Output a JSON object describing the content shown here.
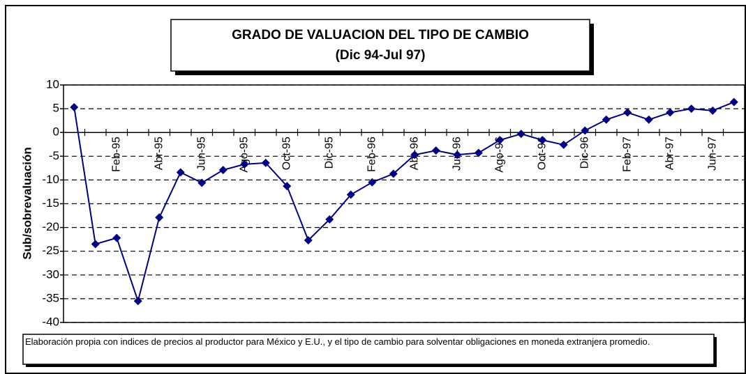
{
  "chart_data": {
    "type": "line",
    "title": "GRADO DE VALUACION DEL TIPO DE CAMBIO",
    "subtitle": "(Dic 94-Jul 97)",
    "y_label": "Sub/sobrevaluación",
    "note": "Elaboración propia con indices de precios al productor para México y E.U., y el tipo de cambio para solventar obligaciones en moneda extranjera promedio.",
    "categories": [
      null,
      null,
      "Feb-95",
      null,
      "Abr-95",
      null,
      "Jun-95",
      null,
      "Ago-95",
      null,
      "Oct-95",
      null,
      "Dic-95",
      null,
      "Feb-96",
      null,
      "Abr-96",
      null,
      "Jun-96",
      null,
      "Ago-96",
      null,
      "Oct-96",
      null,
      "Dic-96",
      null,
      "Feb-97",
      null,
      "Abr-97",
      null,
      "Jun-97",
      null
    ],
    "series": [
      {
        "name": "Sub/sobrevaluación",
        "color": "#000080",
        "values": [
          5.3,
          -23.5,
          -22.2,
          -35.5,
          -17.9,
          -8.4,
          -10.6,
          -7.9,
          -6.7,
          -6.4,
          -11.3,
          -22.7,
          -18.3,
          -13.1,
          -10.5,
          -8.7,
          -4.7,
          -3.8,
          -4.7,
          -4.3,
          -1.6,
          -0.3,
          -1.6,
          -2.6,
          0.4,
          2.7,
          4.2,
          2.7,
          4.2,
          5.0,
          4.6,
          6.4
        ]
      }
    ],
    "ylim": [
      -40,
      10
    ],
    "yticks": [
      -40,
      -35,
      -30,
      -25,
      -20,
      -15,
      -10,
      -5,
      0,
      5,
      10
    ],
    "grid": true
  }
}
